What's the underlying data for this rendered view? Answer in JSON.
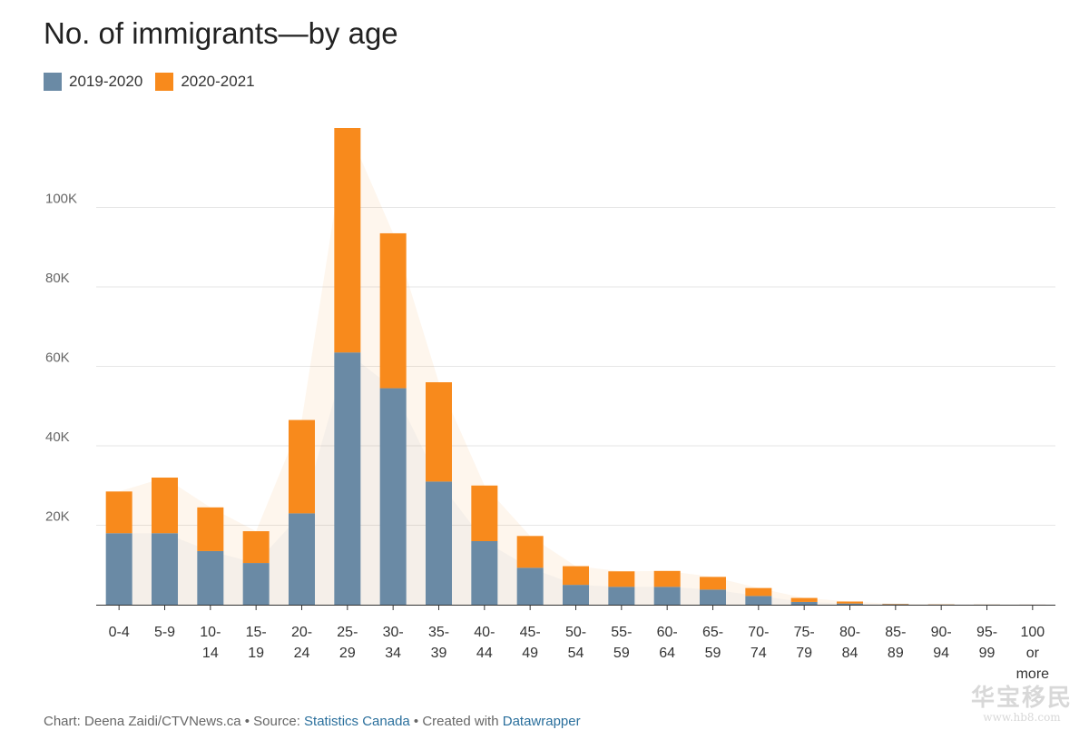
{
  "chart_data": {
    "type": "bar",
    "stacked": true,
    "title": "No. of immigrants—by age",
    "categories": [
      "0-4",
      "5-9",
      "10-14",
      "15-19",
      "20-24",
      "25-29",
      "30-34",
      "35-39",
      "40-44",
      "45-49",
      "50-54",
      "55-59",
      "60-64",
      "65-59",
      "70-74",
      "75-79",
      "80-84",
      "85-89",
      "90-94",
      "95-99",
      "100 or more"
    ],
    "category_labels": [
      [
        "0-4"
      ],
      [
        "5-9"
      ],
      [
        "10-",
        "14"
      ],
      [
        "15-",
        "19"
      ],
      [
        "20-",
        "24"
      ],
      [
        "25-",
        "29"
      ],
      [
        "30-",
        "34"
      ],
      [
        "35-",
        "39"
      ],
      [
        "40-",
        "44"
      ],
      [
        "45-",
        "49"
      ],
      [
        "50-",
        "54"
      ],
      [
        "55-",
        "59"
      ],
      [
        "60-",
        "64"
      ],
      [
        "65-",
        "59"
      ],
      [
        "70-",
        "74"
      ],
      [
        "75-",
        "79"
      ],
      [
        "80-",
        "84"
      ],
      [
        "85-",
        "89"
      ],
      [
        "90-",
        "94"
      ],
      [
        "95-",
        "99"
      ],
      [
        "100",
        "or",
        "more"
      ]
    ],
    "series": [
      {
        "name": "2019-2020",
        "color": "#6a8aa5",
        "values": [
          18000,
          18000,
          13500,
          10500,
          23000,
          63500,
          54500,
          31000,
          16000,
          9300,
          5000,
          4500,
          4500,
          3800,
          2200,
          700,
          300,
          100,
          50,
          20,
          10
        ]
      },
      {
        "name": "2020-2021",
        "color": "#f88a1c",
        "values": [
          10500,
          14000,
          11000,
          8000,
          23500,
          56500,
          39000,
          25000,
          14000,
          8000,
          4700,
          3900,
          4000,
          3200,
          2000,
          1000,
          500,
          100,
          50,
          20,
          10
        ]
      }
    ],
    "ylim": [
      0,
      120000
    ],
    "yticks": [
      20000,
      40000,
      60000,
      80000,
      100000
    ],
    "ytick_labels": [
      "20K",
      "40K",
      "60K",
      "80K",
      "100K"
    ],
    "grid": true,
    "legend_position": "top-left"
  },
  "footer": {
    "prefix": "Chart: Deena Zaidi/CTVNews.ca • Source: ",
    "source_link": "Statistics Canada",
    "middle": " • Created with ",
    "tool_link": "Datawrapper"
  },
  "watermark": {
    "main": "华宝移民",
    "sub": "www.hb8.com"
  }
}
